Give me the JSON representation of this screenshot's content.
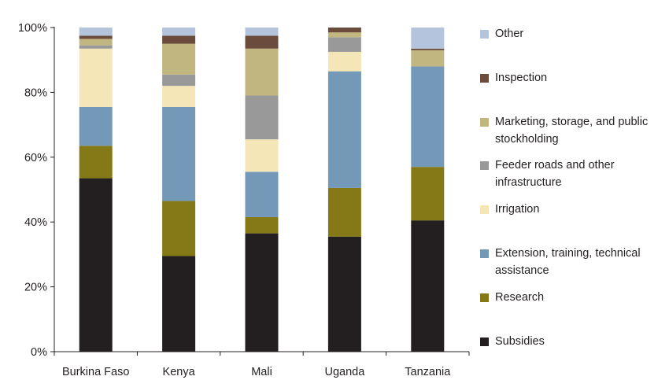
{
  "chart_data": {
    "type": "bar",
    "stacked": true,
    "categories": [
      "Burkina Faso",
      "Kenya",
      "Mali",
      "Uganda",
      "Tanzania"
    ],
    "y_ticks": [
      "0%",
      "20%",
      "40%",
      "60%",
      "80%",
      "100%"
    ],
    "ylim": [
      0,
      100
    ],
    "grid": false,
    "legend_position": "right",
    "series": [
      {
        "name": "Subsidies",
        "color": "#231f20",
        "values": [
          53.5,
          29.5,
          36.5,
          35.5,
          40.5
        ]
      },
      {
        "name": "Research",
        "color": "#857917",
        "values": [
          10,
          17,
          5,
          15,
          16.5
        ]
      },
      {
        "name": "Extension, training, technical assistance",
        "color": "#7499b8",
        "values": [
          12,
          29,
          14,
          36,
          31
        ]
      },
      {
        "name": "Irrigation",
        "color": "#f5e6b8",
        "values": [
          18,
          6.5,
          10,
          6,
          0
        ]
      },
      {
        "name": "Feeder roads and other infrastructure",
        "color": "#999999",
        "values": [
          1,
          3.5,
          13.5,
          4.5,
          0
        ]
      },
      {
        "name": "Marketing, storage, and public stockholding",
        "color": "#c1b67f",
        "values": [
          2,
          9.5,
          14.5,
          1.5,
          5
        ]
      },
      {
        "name": "Inspection",
        "color": "#6b4c3c",
        "values": [
          1,
          2.5,
          4,
          1.5,
          0.5
        ]
      },
      {
        "name": "Other",
        "color": "#b4c4dc",
        "values": [
          2.5,
          2.5,
          2.5,
          0,
          6.5
        ]
      }
    ]
  },
  "legend": [
    {
      "label": "Other",
      "color": "#b4c4dc"
    },
    {
      "label": "Inspection",
      "color": "#6b4c3c"
    },
    {
      "label": "Marketing, storage, and public stockholding",
      "color": "#c1b67f"
    },
    {
      "label": "Feeder roads and other infrastructure",
      "color": "#999999"
    },
    {
      "label": "Irrigation",
      "color": "#f5e6b8"
    },
    {
      "label": "Extension, training, technical assistance",
      "color": "#7499b8"
    },
    {
      "label": "Research",
      "color": "#857917"
    },
    {
      "label": "Subsidies",
      "color": "#231f20"
    }
  ]
}
